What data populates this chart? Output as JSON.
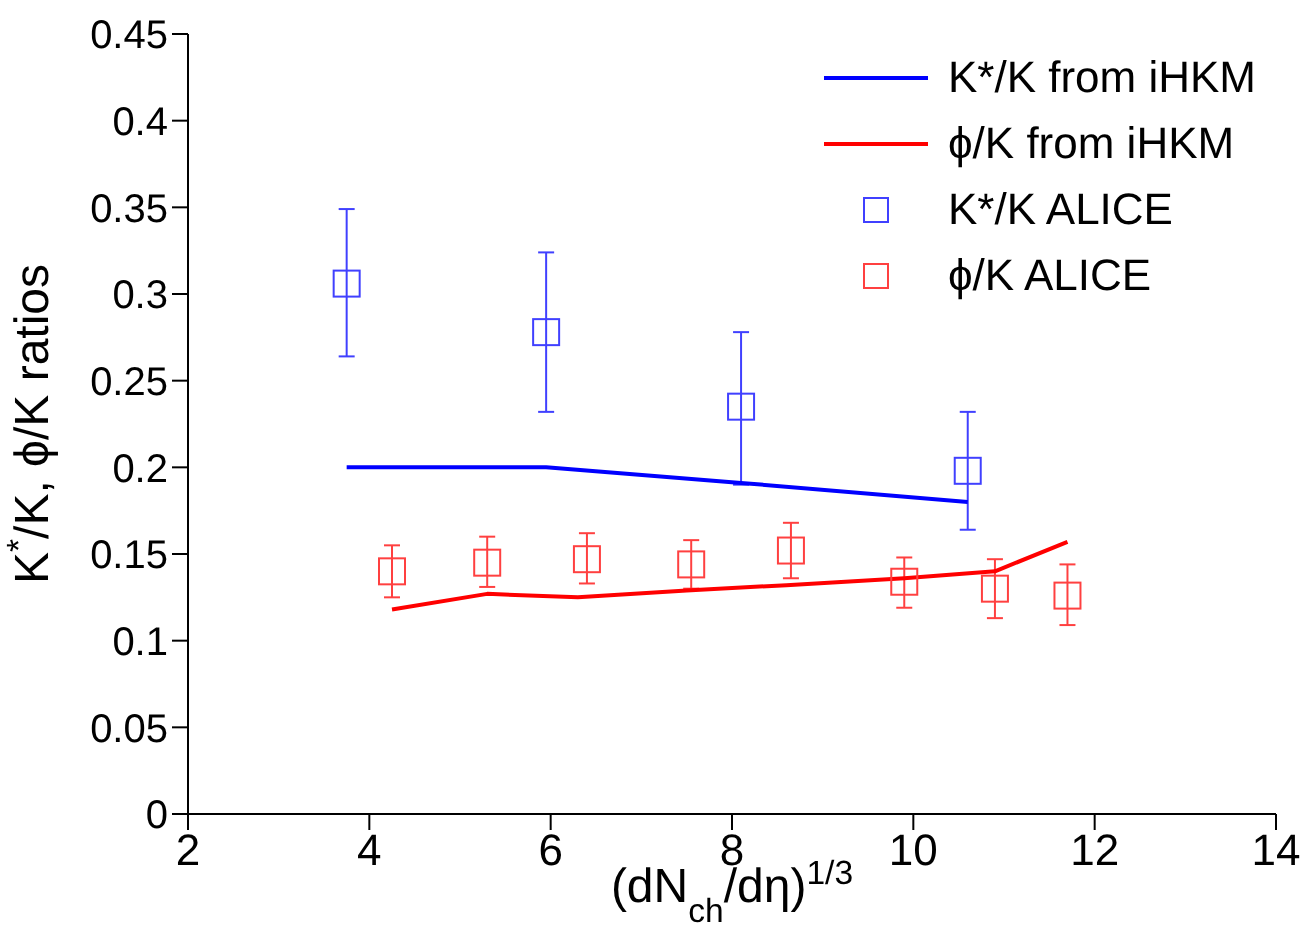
{
  "chart_data": {
    "type": "scatter",
    "xlabel": "(dN$_{ch}$/dη)$^{1/3}$",
    "ylabel": "K$^{*}$/K, ϕ/K ratios",
    "xlim": [
      2,
      14
    ],
    "xticks": [
      2,
      4,
      6,
      8,
      10,
      12,
      14
    ],
    "ylim": [
      0,
      0.45
    ],
    "yticks": [
      0,
      0.05,
      0.1,
      0.15,
      0.2,
      0.25,
      0.3,
      0.35,
      0.4,
      0.45
    ],
    "grid": false,
    "legend": "top right",
    "series": [
      {
        "name": "K*/K from iHKM",
        "type": "line",
        "marker": "none",
        "color": "#0000ff",
        "x": [
          3.75,
          5.95,
          8.1,
          10.6
        ],
        "values": [
          0.2,
          0.2,
          0.191,
          0.18
        ]
      },
      {
        "name": "ϕ/K from iHKM",
        "type": "line",
        "marker": "none",
        "color": "#ff0000",
        "x": [
          4.25,
          5.3,
          6.3,
          7.5,
          8.6,
          9.9,
          10.9,
          11.7
        ],
        "values": [
          0.118,
          0.127,
          0.125,
          0.129,
          0.132,
          0.136,
          0.14,
          0.157
        ]
      },
      {
        "name": "K*/K ALICE",
        "marker": "square",
        "color": "#4040ff",
        "x": [
          3.75,
          5.95,
          8.1,
          10.6
        ],
        "values": [
          0.306,
          0.278,
          0.235,
          0.198
        ],
        "errors": [
          [
            0.264,
            0.349
          ],
          [
            0.232,
            0.324
          ],
          [
            0.19,
            0.278
          ],
          [
            0.164,
            0.232
          ]
        ]
      },
      {
        "name": "ϕ/K ALICE",
        "marker": "square",
        "color": "#ff4040",
        "x": [
          4.25,
          5.3,
          6.4,
          7.55,
          8.65,
          9.9,
          10.9,
          11.7
        ],
        "values": [
          0.14,
          0.145,
          0.147,
          0.144,
          0.152,
          0.134,
          0.13,
          0.126
        ],
        "errors": [
          [
            0.125,
            0.155
          ],
          [
            0.131,
            0.16
          ],
          [
            0.133,
            0.162
          ],
          [
            0.13,
            0.158
          ],
          [
            0.136,
            0.168
          ],
          [
            0.119,
            0.148
          ],
          [
            0.113,
            0.147
          ],
          [
            0.109,
            0.144
          ]
        ]
      }
    ]
  }
}
